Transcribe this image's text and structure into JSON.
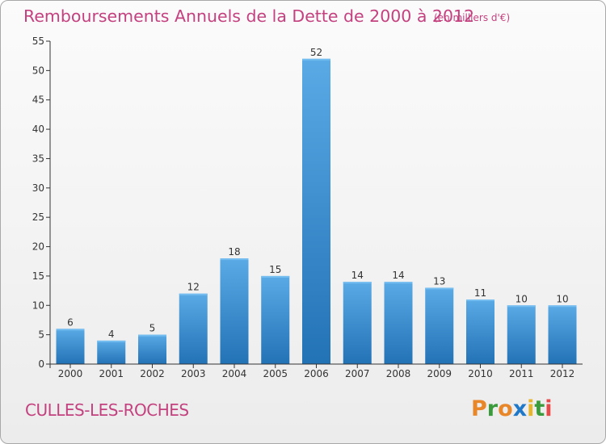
{
  "header": {
    "title": "Remboursements Annuels de la Dette de 2000 à 2012",
    "unit": "(en milliers d'€)"
  },
  "footer": {
    "commune": "CULLES-LES-ROCHES",
    "logo": "Proxiti"
  },
  "colors": {
    "accent": "#c4417f",
    "bar_light": "#5aaae6",
    "bar_dark": "#2272b6",
    "logo_letters": [
      "#e8862a",
      "#3b9a3b",
      "#e8862a",
      "#1f78c8",
      "#e8b52a",
      "#3b9a3b",
      "#e84a4a"
    ]
  },
  "chart_data": {
    "type": "bar",
    "title": "Remboursements Annuels de la Dette de 2000 à 2012",
    "ylabel": "",
    "xlabel": "",
    "categories": [
      "2000",
      "2001",
      "2002",
      "2003",
      "2004",
      "2005",
      "2006",
      "2007",
      "2008",
      "2009",
      "2010",
      "2011",
      "2012"
    ],
    "values": [
      6,
      4,
      5,
      12,
      18,
      15,
      52,
      14,
      14,
      13,
      11,
      10,
      10
    ],
    "ylim": [
      0,
      55
    ],
    "yticks": [
      0,
      5,
      10,
      15,
      20,
      25,
      30,
      35,
      40,
      45,
      50,
      55
    ],
    "grid": false
  }
}
